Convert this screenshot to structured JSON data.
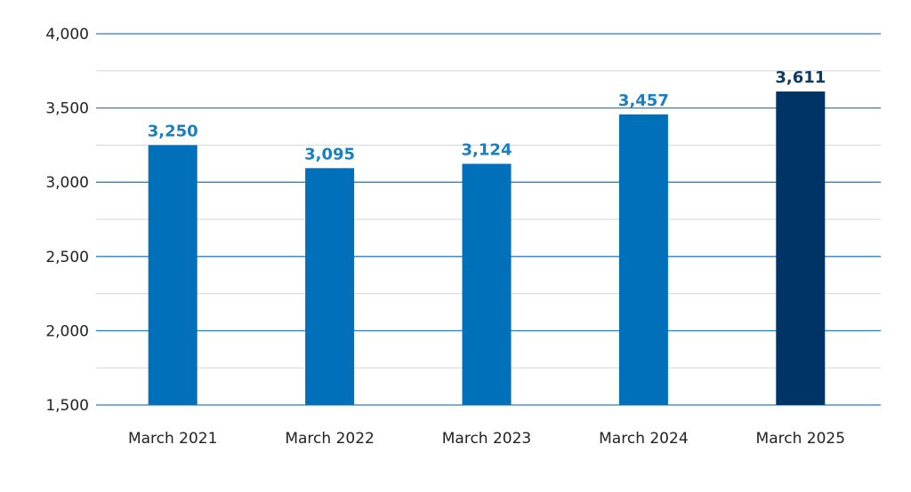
{
  "chart_data": {
    "type": "bar",
    "categories": [
      "March 2021",
      "March 2022",
      "March 2023",
      "March 2024",
      "March 2025"
    ],
    "values": [
      3250,
      3095,
      3124,
      3457,
      3611
    ],
    "data_labels": [
      "3,250",
      "3,095",
      "3,124",
      "3,457",
      "3,611"
    ],
    "ylim": [
      1500,
      4000
    ],
    "y_ticks": [
      1500,
      2000,
      2500,
      3000,
      3500,
      4000
    ],
    "y_tick_labels": [
      "1,500",
      "2,000",
      "2,500",
      "3,000",
      "3,500",
      "4,000"
    ],
    "grid": true,
    "title": "",
    "xlabel": "",
    "ylabel": ""
  },
  "colors": {
    "bar": "#0070BA",
    "bar_highlight": "#003366",
    "label": "#1A7FC1",
    "label_highlight": "#0D3B66",
    "major_grid": "#2E7FC0",
    "minor_grid": "#D5D5D5",
    "axis_text": "#222222"
  },
  "highlight_index": 4
}
